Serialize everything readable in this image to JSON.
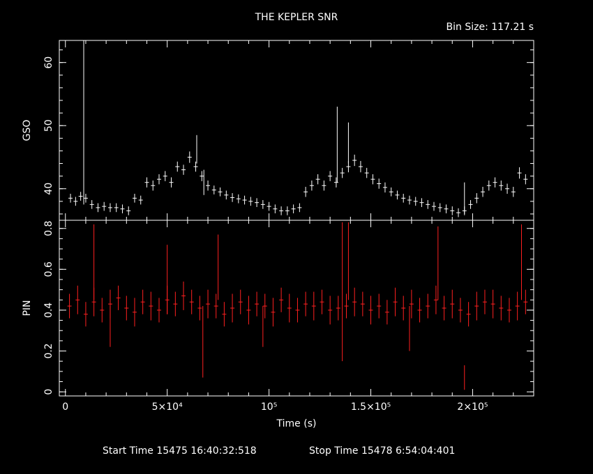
{
  "title": "THE KEPLER SNR",
  "bin_size": "Bin Size: 117.21 s",
  "xlabel": "Time (s)",
  "footer": {
    "start": "Start Time 15475 16:40:32:518",
    "stop": "Stop Time 15478  6:54:04:401"
  },
  "colors": {
    "background": "#000000",
    "axes": "#ffffff",
    "gso": "#ffffff",
    "pin": "#ff2020"
  },
  "chart_data": [
    {
      "type": "line",
      "name": "GSO panel",
      "ylabel": "GSO",
      "xlim": [
        -3000,
        230000
      ],
      "ylim": [
        35,
        63.5
      ],
      "xticks": [
        0,
        50000,
        100000,
        150000,
        200000
      ],
      "xticklabels": [
        "0",
        "5×10⁴",
        "10⁵",
        "1.5×10⁵",
        "2×10⁵"
      ],
      "yticks": [
        40,
        50,
        60
      ],
      "yticklabels": [
        "40",
        "50",
        "60"
      ],
      "series": [
        {
          "x": [
            2500,
            5000,
            7500,
            10000,
            13000,
            16000,
            19000,
            22000,
            25000,
            28000,
            31000,
            34000,
            37000,
            40000,
            43000,
            46000,
            49000,
            52000,
            55000,
            58000,
            61000,
            64000,
            67000,
            70000,
            73000,
            76000,
            79000,
            82000,
            85000,
            88000,
            91000,
            94000,
            97000,
            100000,
            103000,
            106000,
            109000,
            112000,
            115000,
            118000,
            121000,
            124000,
            127000,
            130000,
            133000,
            136000,
            139000,
            142000,
            145000,
            148000,
            151000,
            154000,
            157000,
            160000,
            163000,
            166000,
            169000,
            172000,
            175000,
            178000,
            181000,
            184000,
            187000,
            190000,
            193000,
            196000,
            199000,
            202000,
            205000,
            208000,
            211000,
            214000,
            217000,
            220000,
            223000,
            226000
          ],
          "y": [
            38.5,
            38,
            38.8,
            38.5,
            37.5,
            37,
            37.2,
            37,
            37,
            36.8,
            36.5,
            38.5,
            38.2,
            41,
            40.5,
            41.5,
            42,
            41,
            43.5,
            43,
            45,
            43.5,
            42,
            40.5,
            39.8,
            39.5,
            39,
            38.6,
            38.4,
            38.2,
            38,
            37.8,
            37.5,
            37.2,
            36.8,
            36.5,
            36.5,
            36.8,
            37,
            39.5,
            40.5,
            41.5,
            40.5,
            42,
            41,
            42.5,
            43.5,
            44.5,
            43.5,
            42.5,
            41.5,
            40.8,
            40.2,
            39.5,
            39,
            38.5,
            38.2,
            38,
            37.8,
            37.5,
            37.2,
            37,
            36.8,
            36.5,
            36.2,
            36.5,
            37.5,
            38.5,
            39.5,
            40.5,
            41,
            40.5,
            40,
            39.5,
            42.5,
            41.5
          ],
          "err": [
            0.7,
            0.7,
            0.7,
            0.7,
            0.7,
            0.7,
            0.7,
            0.7,
            0.7,
            0.7,
            0.7,
            0.7,
            0.7,
            0.8,
            0.8,
            0.8,
            0.8,
            0.8,
            0.8,
            0.8,
            0.9,
            0.8,
            0.8,
            0.8,
            0.7,
            0.7,
            0.7,
            0.7,
            0.7,
            0.7,
            0.7,
            0.7,
            0.7,
            0.7,
            0.7,
            0.7,
            0.7,
            0.7,
            0.7,
            0.8,
            0.8,
            0.8,
            0.8,
            0.8,
            0.8,
            0.8,
            0.9,
            0.9,
            0.9,
            0.8,
            0.8,
            0.8,
            0.8,
            0.7,
            0.7,
            0.7,
            0.7,
            0.7,
            0.7,
            0.7,
            0.7,
            0.7,
            0.7,
            0.7,
            0.7,
            0.7,
            0.7,
            0.8,
            0.8,
            0.8,
            0.8,
            0.8,
            0.8,
            0.8,
            0.9,
            0.8
          ],
          "spikes": [
            {
              "x": 9000,
              "y0": 37.5,
              "y1": 63.5
            },
            {
              "x": 64500,
              "y0": 44,
              "y1": 48.5
            },
            {
              "x": 133500,
              "y0": 41,
              "y1": 53
            },
            {
              "x": 139000,
              "y0": 44,
              "y1": 50.5
            },
            {
              "x": 68000,
              "y0": 39,
              "y1": 43
            },
            {
              "x": 196000,
              "y0": 36,
              "y1": 41
            }
          ]
        }
      ]
    },
    {
      "type": "line",
      "name": "PIN panel",
      "ylabel": "PIN",
      "xlim": [
        -3000,
        230000
      ],
      "ylim": [
        -0.02,
        0.84
      ],
      "xticks": [
        0,
        50000,
        100000,
        150000,
        200000
      ],
      "xticklabels": [
        "0",
        "5×10⁴",
        "10⁵",
        "1.5×10⁵",
        "2×10⁵"
      ],
      "yticks": [
        0,
        0.2,
        0.4,
        0.6,
        0.8
      ],
      "yticklabels": [
        "0",
        "0.2",
        "0.4",
        "0.6",
        "0.8"
      ],
      "series": [
        {
          "x": [
            2000,
            6000,
            10000,
            14000,
            18000,
            22000,
            26000,
            30000,
            34000,
            38000,
            42000,
            46000,
            50000,
            54000,
            58000,
            62000,
            66000,
            70000,
            74000,
            78000,
            82000,
            86000,
            90000,
            94000,
            98000,
            102000,
            106000,
            110000,
            114000,
            118000,
            122000,
            126000,
            130000,
            134000,
            138000,
            142000,
            146000,
            150000,
            154000,
            158000,
            162000,
            166000,
            170000,
            174000,
            178000,
            182000,
            186000,
            190000,
            194000,
            198000,
            202000,
            206000,
            210000,
            214000,
            218000,
            222000,
            226000
          ],
          "y": [
            0.42,
            0.45,
            0.38,
            0.44,
            0.4,
            0.43,
            0.46,
            0.41,
            0.39,
            0.44,
            0.42,
            0.4,
            0.45,
            0.43,
            0.47,
            0.44,
            0.41,
            0.43,
            0.42,
            0.38,
            0.41,
            0.44,
            0.4,
            0.43,
            0.42,
            0.39,
            0.45,
            0.41,
            0.4,
            0.43,
            0.42,
            0.44,
            0.4,
            0.41,
            0.42,
            0.44,
            0.43,
            0.4,
            0.42,
            0.39,
            0.44,
            0.41,
            0.43,
            0.4,
            0.42,
            0.45,
            0.41,
            0.43,
            0.4,
            0.38,
            0.42,
            0.44,
            0.43,
            0.41,
            0.4,
            0.42,
            0.44
          ],
          "err": [
            0.06,
            0.07,
            0.06,
            0.07,
            0.06,
            0.07,
            0.06,
            0.06,
            0.07,
            0.06,
            0.07,
            0.06,
            0.07,
            0.06,
            0.07,
            0.06,
            0.06,
            0.07,
            0.06,
            0.06,
            0.07,
            0.06,
            0.07,
            0.06,
            0.06,
            0.07,
            0.06,
            0.07,
            0.06,
            0.06,
            0.07,
            0.06,
            0.07,
            0.06,
            0.06,
            0.07,
            0.06,
            0.07,
            0.06,
            0.06,
            0.07,
            0.06,
            0.07,
            0.06,
            0.06,
            0.07,
            0.06,
            0.07,
            0.06,
            0.06,
            0.07,
            0.06,
            0.07,
            0.06,
            0.06,
            0.07,
            0.06
          ],
          "spikes": [
            {
              "x": 14000,
              "y0": 0.45,
              "y1": 0.82
            },
            {
              "x": 22000,
              "y0": 0.22,
              "y1": 0.42
            },
            {
              "x": 50000,
              "y0": 0.38,
              "y1": 0.72
            },
            {
              "x": 67500,
              "y0": 0.07,
              "y1": 0.42
            },
            {
              "x": 75000,
              "y0": 0.45,
              "y1": 0.77
            },
            {
              "x": 97000,
              "y0": 0.22,
              "y1": 0.42
            },
            {
              "x": 136000,
              "y0": 0.15,
              "y1": 0.83
            },
            {
              "x": 139000,
              "y0": 0.45,
              "y1": 0.83
            },
            {
              "x": 169000,
              "y0": 0.2,
              "y1": 0.42
            },
            {
              "x": 183000,
              "y0": 0.45,
              "y1": 0.81
            },
            {
              "x": 196000,
              "y0": 0.01,
              "y1": 0.13
            },
            {
              "x": 224000,
              "y0": 0.45,
              "y1": 0.82
            }
          ]
        }
      ]
    }
  ]
}
